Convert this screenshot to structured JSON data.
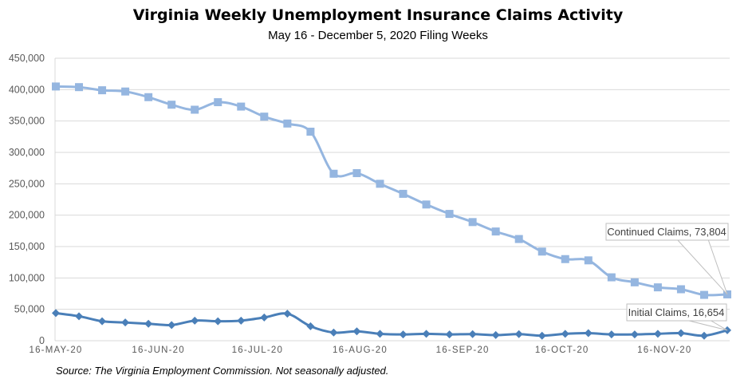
{
  "chart_data": {
    "type": "line",
    "title": "Virginia Weekly Unemployment Insurance Claims Activity",
    "subtitle": "May 16 - December 5, 2020 Filing Weeks",
    "source": "Source: The Virginia Employment Commission. Not seasonally adjusted.",
    "xlabel": "",
    "ylabel": "",
    "ylim": [
      0,
      450000
    ],
    "yticks": [
      "0",
      "50,000",
      "100,000",
      "150,000",
      "200,000",
      "250,000",
      "300,000",
      "350,000",
      "400,000",
      "450,000"
    ],
    "xtick_labels": [
      {
        "label": "16-MAY-20",
        "week_index": 0
      },
      {
        "label": "16-JUN-20",
        "week_index": 4.43
      },
      {
        "label": "16-JUL-20",
        "week_index": 8.71
      },
      {
        "label": "16-AUG-20",
        "week_index": 13.14
      },
      {
        "label": "16-SEP-20",
        "week_index": 17.57
      },
      {
        "label": "16-OCT-20",
        "week_index": 21.86
      },
      {
        "label": "16-NOV-20",
        "week_index": 26.29
      }
    ],
    "grid": true,
    "series": [
      {
        "name": "Continued Claims",
        "color": "#95b6e0",
        "marker": "square",
        "values": [
          405000,
          404000,
          399000,
          397000,
          388000,
          376000,
          368000,
          380000,
          373000,
          357000,
          346000,
          333000,
          266000,
          267000,
          250000,
          234000,
          217000,
          202000,
          189000,
          174000,
          162000,
          142000,
          130000,
          128000,
          101000,
          93000,
          85000,
          82000,
          73000,
          73804
        ],
        "end_label": "Continued Claims, 73,804"
      },
      {
        "name": "Initial Claims",
        "color": "#4a7fb8",
        "marker": "diamond",
        "values": [
          44000,
          39000,
          31000,
          29000,
          27000,
          25000,
          32000,
          31000,
          32000,
          37000,
          43000,
          23000,
          13000,
          15000,
          11000,
          10000,
          11000,
          10000,
          10500,
          9000,
          10500,
          8000,
          11000,
          12000,
          10000,
          10000,
          11000,
          12000,
          8000,
          16654
        ],
        "end_label": "Initial Claims, 16,654"
      }
    ]
  }
}
